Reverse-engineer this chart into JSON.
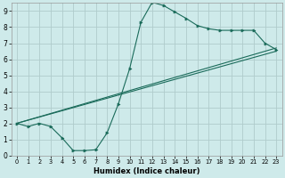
{
  "xlabel": "Humidex (Indice chaleur)",
  "background_color": "#ceeaea",
  "grid_color": "#b0cccc",
  "line_color": "#1a6b5a",
  "xlim": [
    -0.5,
    23.5
  ],
  "ylim": [
    0,
    9.5
  ],
  "xticks": [
    0,
    1,
    2,
    3,
    4,
    5,
    6,
    7,
    8,
    9,
    10,
    11,
    12,
    13,
    14,
    15,
    16,
    17,
    18,
    19,
    20,
    21,
    22,
    23
  ],
  "yticks": [
    0,
    1,
    2,
    3,
    4,
    5,
    6,
    7,
    8,
    9
  ],
  "line1_x": [
    0,
    1,
    2,
    3,
    4,
    5,
    6,
    7,
    8,
    9,
    10,
    11,
    12,
    13,
    14,
    15,
    16,
    17,
    18,
    19,
    20,
    21,
    22,
    23
  ],
  "line1_y": [
    2.0,
    1.8,
    2.0,
    1.8,
    1.1,
    0.3,
    0.3,
    0.35,
    1.4,
    3.2,
    5.4,
    8.3,
    9.55,
    9.35,
    8.95,
    8.55,
    8.1,
    7.9,
    7.8,
    7.8,
    7.8,
    7.8,
    7.0,
    6.6
  ],
  "line2_x": [
    0,
    23
  ],
  "line2_y": [
    2.0,
    6.5
  ],
  "line3_x": [
    0,
    23
  ],
  "line3_y": [
    2.0,
    6.7
  ]
}
